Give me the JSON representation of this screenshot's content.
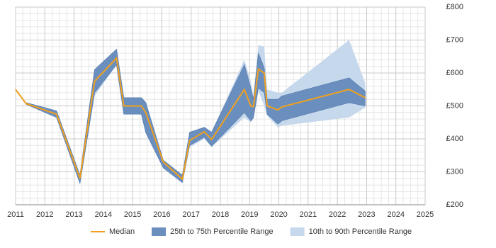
{
  "chart_data": {
    "type": "line",
    "x": [
      2011.0,
      2011.36,
      2012.4,
      2013.2,
      2013.7,
      2014.45,
      2014.7,
      2015.3,
      2015.45,
      2016.05,
      2016.7,
      2016.95,
      2017.45,
      2017.7,
      2018.82,
      2019.04,
      2019.13,
      2019.3,
      2019.5,
      2019.6,
      2019.97,
      2020.1,
      2022.4,
      2022.95
    ],
    "series": [
      {
        "name": "Median",
        "color": "#f0a01e",
        "values": [
          550,
          507,
          475,
          280,
          575,
          645,
          500,
          500,
          480,
          330,
          278,
          395,
          422,
          398,
          550,
          500,
          498,
          612,
          600,
          500,
          488,
          497,
          550,
          525
        ]
      },
      {
        "name": "25th to 75th Percentile Range",
        "color": "#6a8fbf",
        "low": [
          null,
          505,
          465,
          265,
          540,
          625,
          475,
          475,
          420,
          312,
          268,
          380,
          405,
          378,
          480,
          455,
          465,
          555,
          540,
          475,
          445,
          455,
          510,
          500
        ],
        "high": [
          null,
          510,
          485,
          290,
          610,
          672,
          525,
          525,
          510,
          335,
          290,
          420,
          435,
          420,
          625,
          555,
          520,
          660,
          615,
          520,
          520,
          530,
          585,
          545
        ]
      },
      {
        "name": "10th to 90th Percentile Range",
        "color": "#c6d8ec",
        "low": [
          null,
          505,
          465,
          262,
          530,
          625,
          475,
          475,
          415,
          310,
          265,
          375,
          400,
          375,
          465,
          450,
          460,
          545,
          500,
          470,
          435,
          440,
          465,
          495
        ],
        "high": [
          null,
          510,
          485,
          292,
          610,
          672,
          525,
          525,
          510,
          335,
          290,
          420,
          435,
          420,
          640,
          575,
          525,
          685,
          680,
          550,
          540,
          540,
          700,
          570
        ]
      }
    ],
    "xlim": [
      2011,
      2025
    ],
    "xticks": [
      2011,
      2012,
      2013,
      2014,
      2015,
      2016,
      2017,
      2018,
      2019,
      2020,
      2021,
      2022,
      2023,
      2024,
      2025
    ],
    "ylim": [
      200,
      800
    ],
    "yticks": [
      {
        "value": 200,
        "label": "£200"
      },
      {
        "value": 300,
        "label": "£300"
      },
      {
        "value": 400,
        "label": "£400"
      },
      {
        "value": 500,
        "label": "£500"
      },
      {
        "value": 600,
        "label": "£600"
      },
      {
        "value": 700,
        "label": "£700"
      },
      {
        "value": 800,
        "label": "£800"
      }
    ],
    "grid": true
  }
}
